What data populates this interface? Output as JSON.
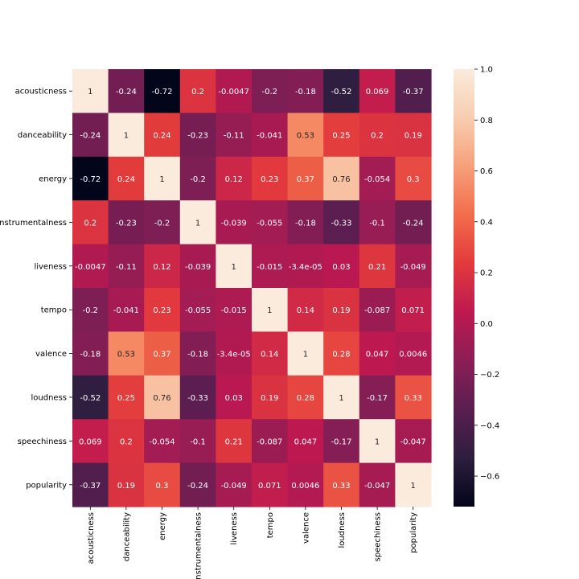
{
  "chart_data": {
    "type": "heatmap",
    "variables": [
      "acousticness",
      "danceability",
      "energy",
      "instrumentalness",
      "liveness",
      "tempo",
      "valence",
      "loudness",
      "speechiness",
      "popularity"
    ],
    "labels": [
      [
        "1",
        "-0.24",
        "-0.72",
        "0.2",
        "-0.0047",
        "-0.2",
        "-0.18",
        "-0.52",
        "0.069",
        "-0.37"
      ],
      [
        "-0.24",
        "1",
        "0.24",
        "-0.23",
        "-0.11",
        "-0.041",
        "0.53",
        "0.25",
        "0.2",
        "0.19"
      ],
      [
        "-0.72",
        "0.24",
        "1",
        "-0.2",
        "0.12",
        "0.23",
        "0.37",
        "0.76",
        "-0.054",
        "0.3"
      ],
      [
        "0.2",
        "-0.23",
        "-0.2",
        "1",
        "-0.039",
        "-0.055",
        "-0.18",
        "-0.33",
        "-0.1",
        "-0.24"
      ],
      [
        "-0.0047",
        "-0.11",
        "0.12",
        "-0.039",
        "1",
        "-0.015",
        "-3.4e-05",
        "0.03",
        "0.21",
        "-0.049"
      ],
      [
        "-0.2",
        "-0.041",
        "0.23",
        "-0.055",
        "-0.015",
        "1",
        "0.14",
        "0.19",
        "-0.087",
        "0.071"
      ],
      [
        "-0.18",
        "0.53",
        "0.37",
        "-0.18",
        "-3.4e-05",
        "0.14",
        "1",
        "0.28",
        "0.047",
        "0.0046"
      ],
      [
        "-0.52",
        "0.25",
        "0.76",
        "-0.33",
        "0.03",
        "0.19",
        "0.28",
        "1",
        "-0.17",
        "0.33"
      ],
      [
        "0.069",
        "0.2",
        "-0.054",
        "-0.1",
        "0.21",
        "-0.087",
        "0.047",
        "-0.17",
        "1",
        "-0.047"
      ],
      [
        "-0.37",
        "0.19",
        "0.3",
        "-0.24",
        "-0.049",
        "0.071",
        "0.0046",
        "0.33",
        "-0.047",
        "1"
      ]
    ],
    "vmin": -0.72,
    "vmax": 1.0,
    "colorbar_ticks": [
      "1.0",
      "0.8",
      "0.6",
      "0.4",
      "0.2",
      "0.0",
      "−0.2",
      "−0.4",
      "−0.6"
    ],
    "colorbar_tick_values": [
      1.0,
      0.8,
      0.6,
      0.4,
      0.2,
      0.0,
      -0.2,
      -0.4,
      -0.6
    ],
    "colormap": "rocket",
    "colormap_stops": [
      "#03051a",
      "#2d1e3e",
      "#5a1e50",
      "#8b1e55",
      "#bd1950",
      "#e23a3c",
      "#f26d4b",
      "#f6a07a",
      "#f8cdb0",
      "#faebdd"
    ],
    "annotated": true,
    "grid": false,
    "colorbar_position": "right"
  }
}
